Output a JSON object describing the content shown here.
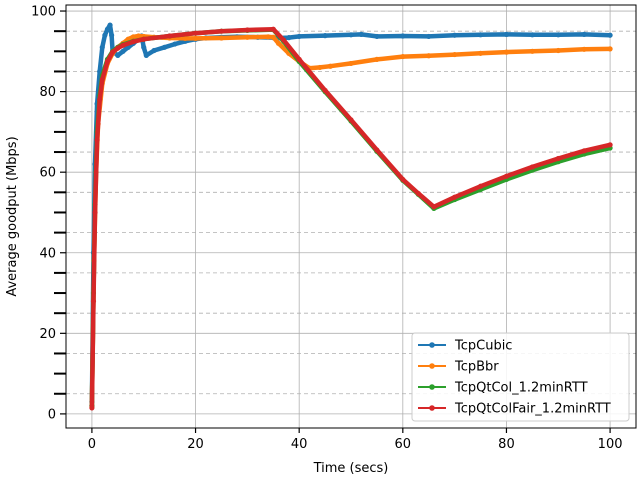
{
  "chart_data": {
    "type": "line",
    "title": "",
    "xlabel": "Time (secs)",
    "ylabel": "Average goodput (Mbps)",
    "xlim": [
      -5,
      105
    ],
    "ylim": [
      -3.5,
      101.5
    ],
    "xticks": [
      0,
      20,
      40,
      60,
      80,
      100
    ],
    "yticks": [
      0,
      20,
      40,
      60,
      80,
      100
    ],
    "grid": "major solid, minor dashed (y every 5)",
    "legend_position": "lower-right",
    "series": [
      {
        "name": "TcpCubic",
        "color": "#1f77b4",
        "points": [
          [
            0,
            3
          ],
          [
            0.3,
            40
          ],
          [
            0.6,
            62
          ],
          [
            1,
            77
          ],
          [
            1.5,
            85
          ],
          [
            2,
            91
          ],
          [
            2.5,
            94
          ],
          [
            3,
            95.5
          ],
          [
            3.5,
            96.5
          ],
          [
            3.8,
            94
          ],
          [
            4,
            90
          ],
          [
            5,
            89
          ],
          [
            6,
            90
          ],
          [
            7,
            91
          ],
          [
            8,
            92
          ],
          [
            9,
            93
          ],
          [
            9.6,
            93.8
          ],
          [
            10,
            91
          ],
          [
            10.5,
            89
          ],
          [
            12,
            90.2
          ],
          [
            14,
            91
          ],
          [
            16,
            91.8
          ],
          [
            18,
            92.5
          ],
          [
            20,
            93
          ],
          [
            22,
            93.3
          ],
          [
            25,
            93.5
          ],
          [
            28,
            93.6
          ],
          [
            32,
            93.5
          ],
          [
            35,
            93.4
          ],
          [
            36,
            93.3
          ],
          [
            38,
            93.4
          ],
          [
            40,
            93.7
          ],
          [
            45,
            93.9
          ],
          [
            50,
            94.1
          ],
          [
            52,
            94.2
          ],
          [
            55,
            93.7
          ],
          [
            60,
            93.8
          ],
          [
            65,
            93.7
          ],
          [
            70,
            94
          ],
          [
            75,
            94.1
          ],
          [
            80,
            94.2
          ],
          [
            85,
            94.1
          ],
          [
            90,
            94.1
          ],
          [
            95,
            94.2
          ],
          [
            100,
            94
          ]
        ]
      },
      {
        "name": "TcpBbr",
        "color": "#ff7f0e",
        "points": [
          [
            0,
            2
          ],
          [
            0.4,
            38
          ],
          [
            0.8,
            60
          ],
          [
            1.2,
            72
          ],
          [
            2,
            82
          ],
          [
            3,
            87
          ],
          [
            4,
            89.5
          ],
          [
            5,
            91
          ],
          [
            6,
            92
          ],
          [
            7,
            93
          ],
          [
            8,
            93.6
          ],
          [
            9,
            93.8
          ],
          [
            10,
            93.7
          ],
          [
            12,
            93.5
          ],
          [
            15,
            93.3
          ],
          [
            18,
            93.2
          ],
          [
            20,
            93.2
          ],
          [
            25,
            93.3
          ],
          [
            30,
            93.5
          ],
          [
            34,
            93.6
          ],
          [
            35,
            93.5
          ],
          [
            36,
            92
          ],
          [
            38,
            89.5
          ],
          [
            40,
            87.5
          ],
          [
            42,
            85.8
          ],
          [
            44,
            86
          ],
          [
            46,
            86.3
          ],
          [
            50,
            87
          ],
          [
            55,
            88
          ],
          [
            60,
            88.7
          ],
          [
            65,
            88.9
          ],
          [
            70,
            89.2
          ],
          [
            75,
            89.5
          ],
          [
            80,
            89.8
          ],
          [
            85,
            90
          ],
          [
            90,
            90.2
          ],
          [
            95,
            90.5
          ],
          [
            100,
            90.6
          ]
        ]
      },
      {
        "name": "TcpQtCol_1.2minRTT",
        "color": "#2ca02c",
        "points": [
          [
            0,
            2
          ],
          [
            0.3,
            30
          ],
          [
            0.6,
            52
          ],
          [
            1,
            70
          ],
          [
            1.5,
            79
          ],
          [
            2,
            84
          ],
          [
            3,
            88
          ],
          [
            4,
            90
          ],
          [
            5,
            91
          ],
          [
            6,
            91.7
          ],
          [
            8,
            92.5
          ],
          [
            10,
            93
          ],
          [
            15,
            93.8
          ],
          [
            20,
            94.5
          ],
          [
            25,
            95
          ],
          [
            30,
            95.2
          ],
          [
            35,
            95.4
          ],
          [
            37,
            92.5
          ],
          [
            40,
            87.5
          ],
          [
            45,
            80
          ],
          [
            50,
            72.7
          ],
          [
            55,
            65.2
          ],
          [
            60,
            58
          ],
          [
            63,
            54.5
          ],
          [
            66,
            51
          ],
          [
            70,
            53.2
          ],
          [
            75,
            55.7
          ],
          [
            80,
            58.2
          ],
          [
            85,
            60.5
          ],
          [
            90,
            62.6
          ],
          [
            95,
            64.5
          ],
          [
            100,
            66
          ]
        ]
      },
      {
        "name": "TcpQtColFair_1.2minRTT",
        "color": "#d62728",
        "points": [
          [
            0,
            1.5
          ],
          [
            0.3,
            28
          ],
          [
            0.6,
            50
          ],
          [
            1,
            68
          ],
          [
            1.5,
            78
          ],
          [
            2,
            83
          ],
          [
            3,
            87.5
          ],
          [
            4,
            89.8
          ],
          [
            5,
            90.8
          ],
          [
            6,
            91.5
          ],
          [
            8,
            92.4
          ],
          [
            10,
            93
          ],
          [
            15,
            93.8
          ],
          [
            20,
            94.5
          ],
          [
            25,
            95
          ],
          [
            30,
            95.3
          ],
          [
            35,
            95.5
          ],
          [
            37,
            92.8
          ],
          [
            40,
            88
          ],
          [
            45,
            80.3
          ],
          [
            50,
            73
          ],
          [
            55,
            65.5
          ],
          [
            60,
            58.2
          ],
          [
            63,
            54.7
          ],
          [
            66,
            51.4
          ],
          [
            70,
            53.8
          ],
          [
            75,
            56.5
          ],
          [
            80,
            59
          ],
          [
            85,
            61.3
          ],
          [
            90,
            63.4
          ],
          [
            95,
            65.3
          ],
          [
            100,
            66.8
          ]
        ]
      }
    ]
  }
}
